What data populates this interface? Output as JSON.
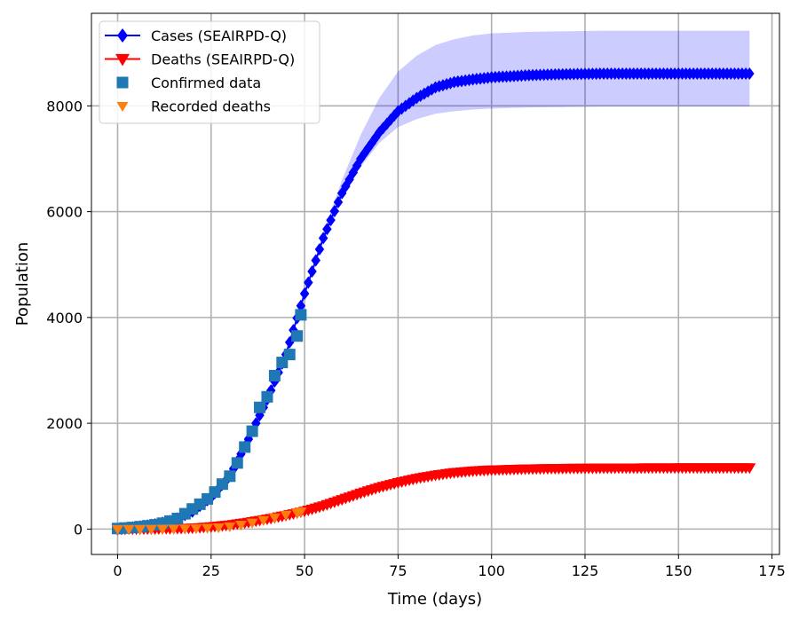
{
  "chart_data": {
    "type": "line",
    "title": "",
    "xlabel": "Time (days)",
    "ylabel": "Population",
    "xlim": [
      -7,
      177
    ],
    "ylim": [
      -480,
      9750
    ],
    "xticks": [
      0,
      25,
      50,
      75,
      100,
      125,
      150,
      175
    ],
    "yticks": [
      0,
      2000,
      4000,
      6000,
      8000
    ],
    "grid": true,
    "legend_position": "top-left",
    "series": [
      {
        "name": "Cases (SEAIRPD-Q)",
        "kind": "model",
        "color": "#0000ff",
        "marker": "diamond",
        "x": [
          0,
          5,
          10,
          15,
          20,
          25,
          30,
          35,
          40,
          45,
          50,
          55,
          60,
          65,
          70,
          75,
          80,
          85,
          90,
          95,
          100,
          110,
          120,
          130,
          140,
          150,
          160,
          169
        ],
        "y": [
          0,
          40,
          90,
          170,
          330,
          600,
          1000,
          1700,
          2450,
          3300,
          4450,
          5500,
          6350,
          7000,
          7500,
          7900,
          8150,
          8350,
          8450,
          8500,
          8540,
          8580,
          8600,
          8610,
          8610,
          8610,
          8610,
          8610
        ],
        "band_lower": [
          0,
          40,
          90,
          170,
          330,
          600,
          1000,
          1700,
          2450,
          3300,
          4450,
          5500,
          6300,
          6850,
          7300,
          7600,
          7750,
          7850,
          7900,
          7930,
          7950,
          7970,
          7980,
          7990,
          7990,
          7990,
          7990,
          7990
        ],
        "band_upper": [
          0,
          40,
          90,
          170,
          330,
          600,
          1000,
          1700,
          2450,
          3300,
          4450,
          5600,
          6600,
          7450,
          8150,
          8650,
          8950,
          9150,
          9260,
          9330,
          9370,
          9400,
          9410,
          9420,
          9420,
          9420,
          9420,
          9420
        ]
      },
      {
        "name": "Deaths (SEAIRPD-Q)",
        "kind": "model",
        "color": "#ff0000",
        "marker": "triangle-down",
        "x": [
          0,
          10,
          20,
          25,
          30,
          35,
          40,
          45,
          50,
          55,
          60,
          65,
          70,
          75,
          80,
          85,
          90,
          95,
          100,
          110,
          120,
          130,
          140,
          150,
          160,
          169
        ],
        "y": [
          0,
          5,
          20,
          45,
          80,
          130,
          190,
          260,
          340,
          440,
          560,
          680,
          790,
          880,
          960,
          1020,
          1070,
          1100,
          1120,
          1140,
          1150,
          1155,
          1158,
          1160,
          1160,
          1160
        ]
      },
      {
        "name": "Confirmed data",
        "kind": "data",
        "color": "#1f77b4",
        "marker": "square",
        "x": [
          0,
          2,
          4,
          6,
          8,
          10,
          12,
          14,
          16,
          18,
          20,
          22,
          24,
          26,
          28,
          30,
          32,
          34,
          36,
          38,
          40,
          42,
          44,
          46,
          48,
          49
        ],
        "y": [
          10,
          20,
          30,
          45,
          60,
          80,
          110,
          150,
          200,
          290,
          380,
          470,
          570,
          700,
          850,
          1000,
          1250,
          1550,
          1850,
          2300,
          2500,
          2900,
          3150,
          3300,
          3650,
          4050
        ]
      },
      {
        "name": "Recorded deaths",
        "kind": "data",
        "color": "#ff7f0e",
        "marker": "triangle-down",
        "x": [
          0,
          3,
          6,
          9,
          12,
          15,
          18,
          21,
          24,
          27,
          30,
          33,
          36,
          39,
          42,
          45,
          48,
          49
        ],
        "y": [
          0,
          1,
          2,
          3,
          5,
          7,
          10,
          15,
          22,
          30,
          50,
          80,
          120,
          170,
          220,
          270,
          310,
          330
        ]
      }
    ]
  }
}
